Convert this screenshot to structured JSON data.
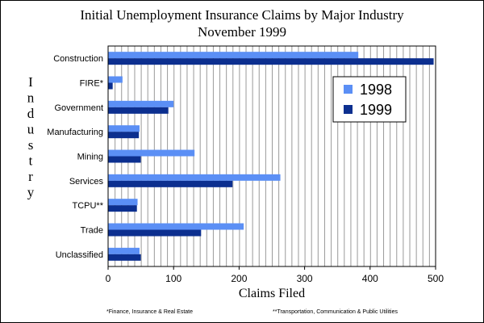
{
  "chart_data": {
    "type": "bar",
    "orientation": "horizontal",
    "title": "Initial Unemployment Insurance Claims by Major Industry",
    "subtitle": "November 1999",
    "xlabel": "Claims Filed",
    "ylabel": "Industry",
    "xlim": [
      0,
      500
    ],
    "xticks": [
      0,
      100,
      200,
      300,
      400,
      500
    ],
    "grid": true,
    "legend_position": "top-right",
    "categories": [
      "Construction",
      "FIRE*",
      "Government",
      "Manufacturing",
      "Mining",
      "Services",
      "TCPU**",
      "Trade",
      "Unclassified"
    ],
    "series": [
      {
        "name": "1998",
        "color": "#5b8ff5",
        "values": [
          382,
          22,
          100,
          48,
          132,
          263,
          45,
          207,
          48
        ]
      },
      {
        "name": "1999",
        "color": "#0c2f8f",
        "values": [
          497,
          7,
          92,
          47,
          50,
          190,
          44,
          142,
          50
        ]
      }
    ],
    "footnotes": [
      "*Finance, Insurance & Real Estate",
      "**Transportation, Communication & Public Utilities"
    ]
  }
}
